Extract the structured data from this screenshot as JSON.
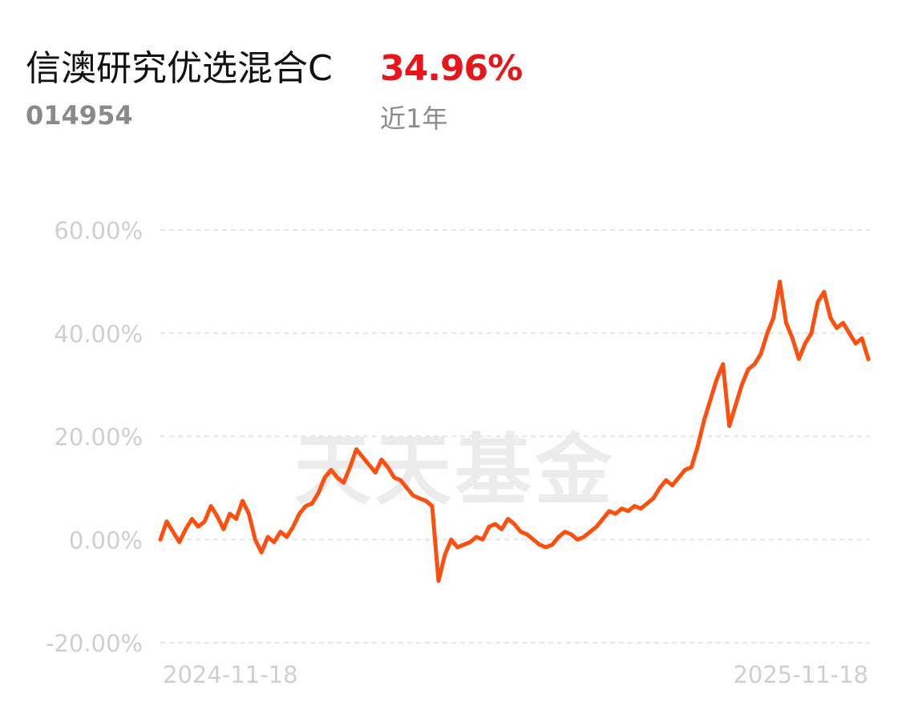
{
  "header": {
    "fund_name": "信澳研究优选混合C",
    "return_value": "34.96%",
    "fund_code": "014954",
    "period_label": "近1年"
  },
  "watermark": "天天基金",
  "colors": {
    "line": "#ff4f0f",
    "return": "#e8161b",
    "grid": "#e6e6e6",
    "label": "#cfcfcf"
  },
  "chart_data": {
    "type": "line",
    "x_labels": [
      "2024-11-18",
      "2025-11-18"
    ],
    "xlim": [
      "2024-11-18",
      "2025-11-18"
    ],
    "ylim": [
      -20,
      60
    ],
    "y_ticks": [
      60,
      40,
      20,
      0,
      -20
    ],
    "y_tick_labels": [
      "60.00%",
      "40.00%",
      "20.00%",
      "0.00%",
      "-20.00%"
    ],
    "grid": true,
    "series": [
      {
        "values": [
          0.0,
          3.5,
          1.5,
          -0.5,
          2.0,
          4.0,
          2.5,
          3.5,
          6.5,
          4.5,
          2.0,
          5.0,
          4.0,
          7.5,
          5.0,
          0.0,
          -2.5,
          0.5,
          -0.5,
          1.5,
          0.5,
          2.5,
          5.0,
          6.5,
          7.0,
          9.0,
          12.0,
          13.5,
          12.0,
          11.0,
          14.0,
          17.5,
          16.0,
          14.5,
          13.0,
          15.5,
          14.0,
          12.0,
          11.5,
          10.0,
          8.5,
          8.0,
          7.5,
          6.5,
          -8.0,
          -3.0,
          0.0,
          -1.5,
          -1.0,
          -0.5,
          0.5,
          0.0,
          2.5,
          3.0,
          2.0,
          4.0,
          3.0,
          1.5,
          1.0,
          0.0,
          -1.0,
          -1.5,
          -1.0,
          0.5,
          1.5,
          1.0,
          0.0,
          0.5,
          1.5,
          2.5,
          4.0,
          5.5,
          5.0,
          6.0,
          5.5,
          6.5,
          6.0,
          7.0,
          8.0,
          10.0,
          11.5,
          10.5,
          12.0,
          13.5,
          14.0,
          18.0,
          23.0,
          27.0,
          31.0,
          34.0,
          22.0,
          26.0,
          30.0,
          33.0,
          34.0,
          36.0,
          40.0,
          43.0,
          50.0,
          42.0,
          39.0,
          35.0,
          38.0,
          40.0,
          46.0,
          48.0,
          43.0,
          41.0,
          42.0,
          40.0,
          38.0,
          39.0,
          34.96
        ]
      }
    ]
  }
}
